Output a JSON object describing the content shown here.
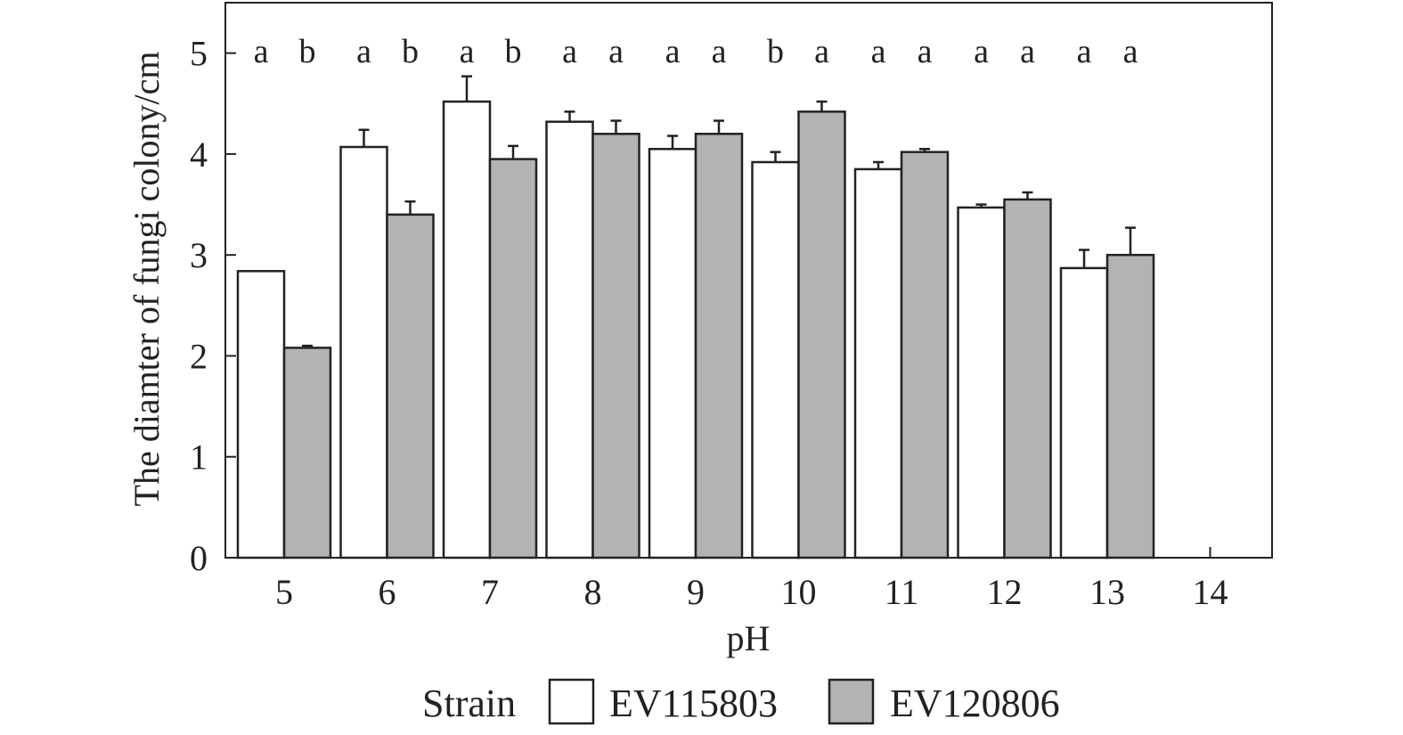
{
  "chart_data": {
    "type": "bar",
    "categories": [
      "5",
      "6",
      "7",
      "8",
      "9",
      "10",
      "11",
      "12",
      "13",
      "14"
    ],
    "xlabel": "pH",
    "ylabel": "The diamter of fungi colony/cm",
    "ylim": [
      0,
      5.5
    ],
    "yticks": [
      "0",
      "1",
      "2",
      "3",
      "4",
      "5"
    ],
    "grid": false,
    "legend_position": "bottom",
    "legend_title": "Strain",
    "series": [
      {
        "name": "EV115803",
        "color": "#ffffff",
        "values": [
          2.84,
          4.07,
          4.52,
          4.32,
          4.05,
          3.92,
          3.85,
          3.47,
          2.87,
          null
        ],
        "errors": [
          0,
          0.17,
          0.25,
          0.1,
          0.13,
          0.1,
          0.07,
          0.03,
          0.18,
          null
        ]
      },
      {
        "name": "EV120806",
        "color": "#b3b3b3",
        "values": [
          2.08,
          3.4,
          3.95,
          4.2,
          4.2,
          4.42,
          4.02,
          3.55,
          3.0,
          null
        ],
        "errors": [
          0.02,
          0.13,
          0.13,
          0.13,
          0.13,
          0.1,
          0.03,
          0.07,
          0.27,
          null
        ]
      }
    ],
    "annotations": [
      "a",
      "b",
      "a",
      "b",
      "a",
      "b",
      "a",
      "a",
      "a",
      "a",
      "b",
      "a",
      "a",
      "a",
      "a",
      "a",
      "a",
      "a"
    ]
  }
}
